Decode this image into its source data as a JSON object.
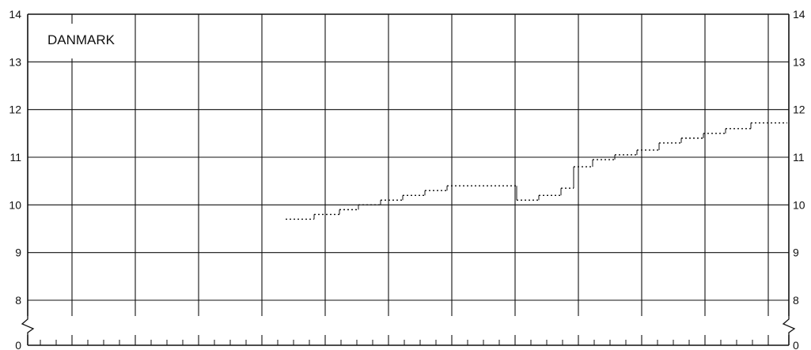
{
  "chart_data": {
    "type": "line",
    "title": "DANMARK",
    "xlabel": "",
    "ylabel": "",
    "y_ticks": [
      "0",
      "8",
      "9",
      "10",
      "11",
      "12",
      "13",
      "14"
    ],
    "ylim_main": [
      8,
      14
    ],
    "y_axis_break": "between 0 and 8",
    "grid": true,
    "line_style": "dotted-step",
    "series": [
      {
        "values": [
          {
            "x": 0.45,
            "y": 9.7
          },
          {
            "x": 0.9,
            "y": 9.8
          },
          {
            "x": 1.3,
            "y": 9.9
          },
          {
            "x": 1.6,
            "y": 10.0
          },
          {
            "x": 1.95,
            "y": 10.1
          },
          {
            "x": 2.3,
            "y": 10.2
          },
          {
            "x": 2.65,
            "y": 10.3
          },
          {
            "x": 3.0,
            "y": 10.4
          },
          {
            "x": 4.1,
            "y": 10.1
          },
          {
            "x": 4.45,
            "y": 10.2
          },
          {
            "x": 4.8,
            "y": 10.35
          },
          {
            "x": 5.0,
            "y": 10.8
          },
          {
            "x": 5.3,
            "y": 10.95
          },
          {
            "x": 5.65,
            "y": 11.05
          },
          {
            "x": 6.0,
            "y": 11.15
          },
          {
            "x": 6.35,
            "y": 11.3
          },
          {
            "x": 6.7,
            "y": 11.4
          },
          {
            "x": 7.05,
            "y": 11.5
          },
          {
            "x": 7.4,
            "y": 11.6
          },
          {
            "x": 7.8,
            "y": 11.72
          }
        ],
        "x_end": 8.6
      }
    ]
  }
}
